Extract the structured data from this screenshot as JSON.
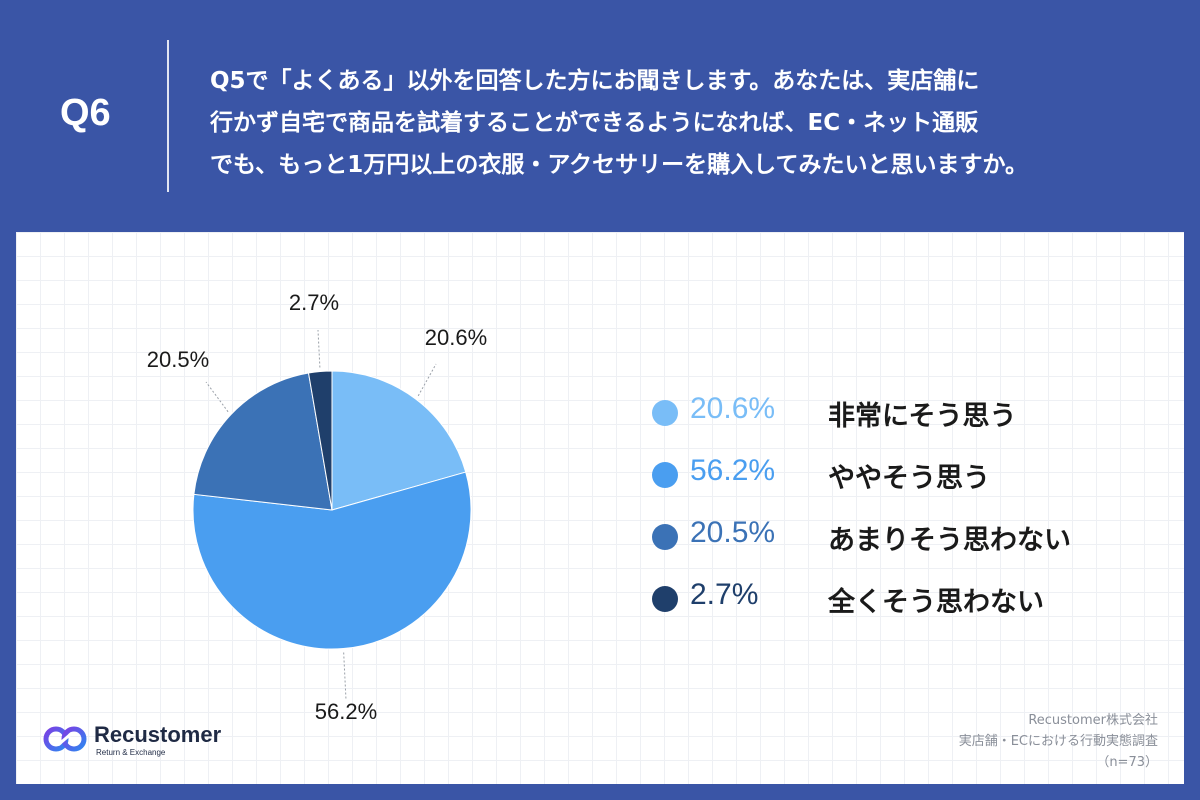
{
  "header": {
    "question_number": "Q6",
    "question_lines": [
      "Q5で「よくある」以外を回答した方にお聞きします。あなたは、実店舗に",
      "行かず自宅で商品を試着することができるようになれば、EC・ネット通販",
      "でも、もっと1万円以上の衣服・アクセサリーを購入してみたいと思いますか。"
    ]
  },
  "chart_data": {
    "type": "pie",
    "categories": [
      "非常にそう思う",
      "ややそう思う",
      "あまりそう思わない",
      "全くそう思わない"
    ],
    "values": [
      20.6,
      56.2,
      20.5,
      2.7
    ],
    "value_labels": [
      "20.6%",
      "56.2%",
      "20.5%",
      "2.7%"
    ],
    "colors": [
      "#79bdf7",
      "#4a9ef0",
      "#3b72b6",
      "#1f3f6b"
    ],
    "start_angle_deg": 0,
    "direction": "clockwise",
    "legend_position": "right"
  },
  "brand": {
    "name": "Recustomer",
    "tagline": "Return & Exchange",
    "logo_icon": "recustomer-logo-icon"
  },
  "source": {
    "lines": [
      "Recustomer株式会社",
      "実店舗・ECにおける行動実態調査",
      "（n=73）"
    ]
  }
}
